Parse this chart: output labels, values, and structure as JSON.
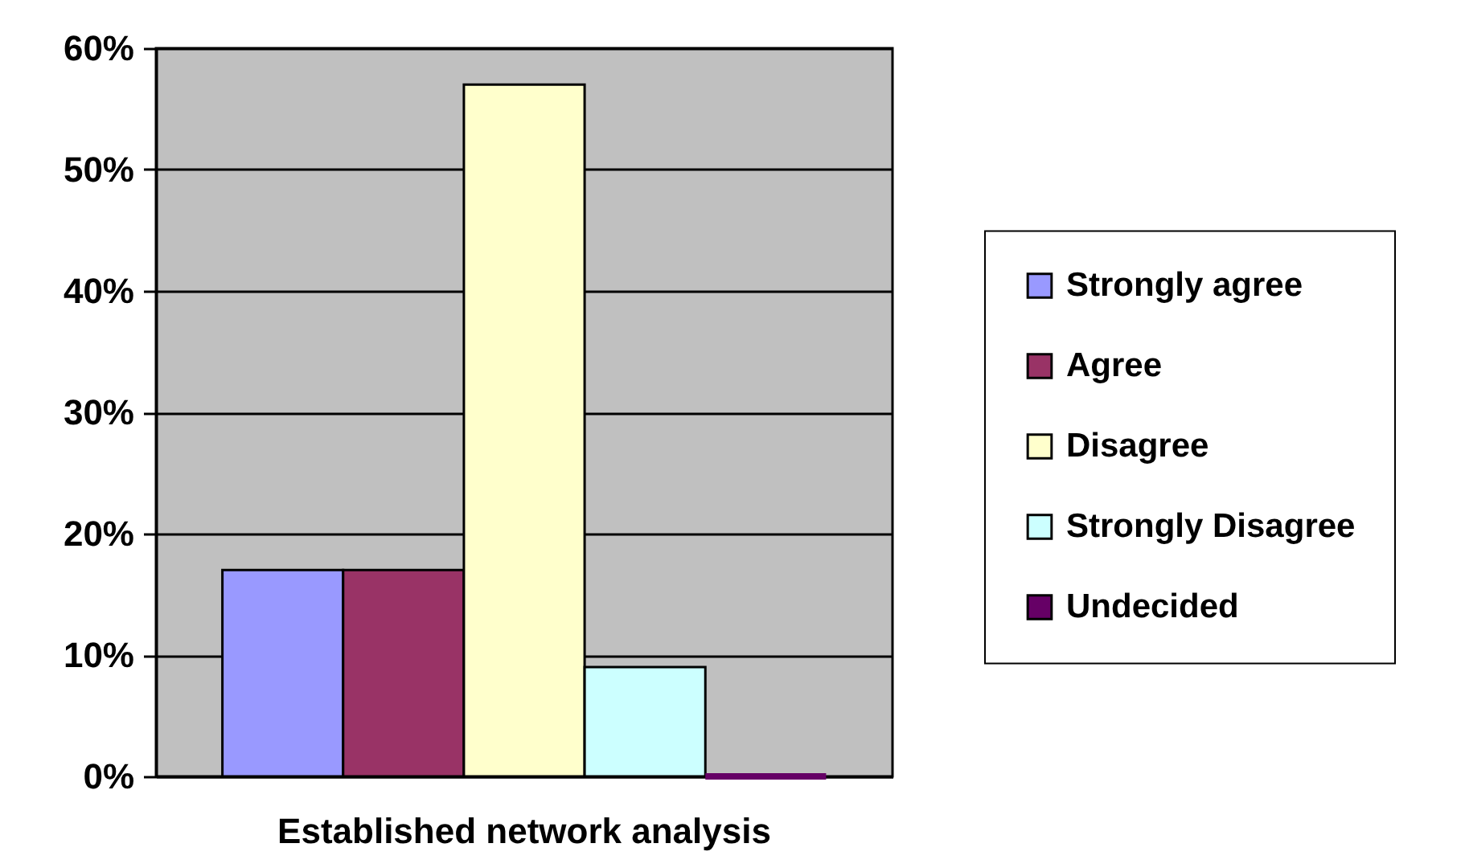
{
  "chart_data": {
    "type": "bar",
    "categories": [
      "Established network analysis"
    ],
    "series": [
      {
        "name": "Strongly agree",
        "color": "#9999ff",
        "values": [
          17
        ]
      },
      {
        "name": "Agree",
        "color": "#993366",
        "values": [
          17
        ]
      },
      {
        "name": "Disagree",
        "color": "#ffffcc",
        "values": [
          57
        ]
      },
      {
        "name": "Strongly Disagree",
        "color": "#ccffff",
        "values": [
          9
        ]
      },
      {
        "name": "Undecided",
        "color": "#660066",
        "values": [
          0
        ]
      }
    ],
    "ylim": [
      0,
      60
    ],
    "yticks": [
      {
        "value": 0,
        "label": "0%"
      },
      {
        "value": 10,
        "label": "10%"
      },
      {
        "value": 20,
        "label": "20%"
      },
      {
        "value": 30,
        "label": "30%"
      },
      {
        "value": 40,
        "label": "40%"
      },
      {
        "value": 50,
        "label": "50%"
      },
      {
        "value": 60,
        "label": "60%"
      }
    ],
    "grid": "y",
    "legend": "right"
  }
}
